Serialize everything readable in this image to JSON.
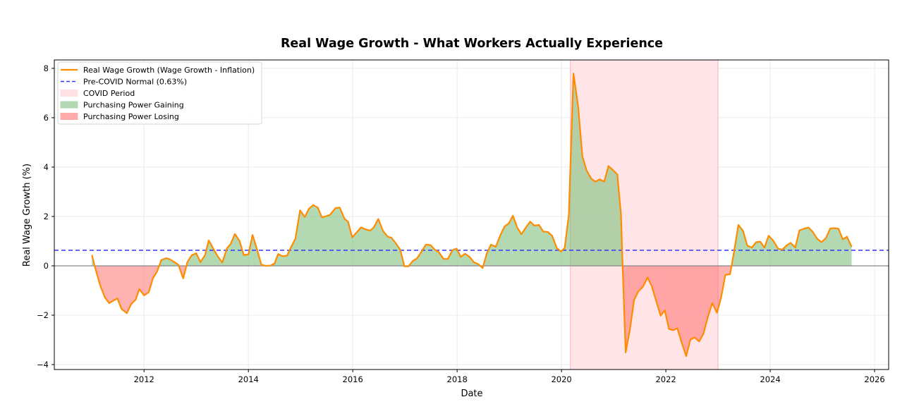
{
  "chart_data": {
    "type": "area",
    "title": "Real Wage Growth - What Workers Actually Experience",
    "xlabel": "Date",
    "ylabel": "Real Wage Growth (%)",
    "xlim": [
      2010.28,
      2026.27
    ],
    "ylim": [
      -4.2,
      8.34
    ],
    "xticks": [
      2012,
      2014,
      2016,
      2018,
      2020,
      2022,
      2024,
      2026
    ],
    "yticks": [
      -4,
      -2,
      0,
      2,
      4,
      6,
      8
    ],
    "ytick_labels": [
      "−4",
      "−2",
      "0",
      "2",
      "4",
      "6",
      "8"
    ],
    "grid": true,
    "legend_position": "top-left",
    "legend": [
      {
        "label": "Real Wage Growth (Wage Growth - Inflation)",
        "kind": "line",
        "color": "#ff8c00"
      },
      {
        "label": "Pre-COVID Normal (0.63%)",
        "kind": "dashed",
        "color": "#3333ff"
      },
      {
        "label": "COVID Period",
        "kind": "patch",
        "color": "#ffe0e3"
      },
      {
        "label": "Purchasing Power Gaining",
        "kind": "patch",
        "color": "#b3d9b3"
      },
      {
        "label": "Purchasing Power Losing",
        "kind": "patch",
        "color": "#ffaaaa"
      }
    ],
    "pre_covid_normal": 0.63,
    "covid_period": [
      2020.17,
      2023.0
    ],
    "colors": {
      "line": "#ff8c00",
      "normal": "#3333ff",
      "covid": "#ffe0e3",
      "gain": "#b3d9b3",
      "loss": "#ffaaaa"
    },
    "series": [
      {
        "name": "Real Wage Growth (Wage Growth - Inflation)",
        "points": [
          [
            2011.0,
            0.44
          ],
          [
            2011.07,
            -0.13
          ],
          [
            2011.16,
            -0.8
          ],
          [
            2011.25,
            -1.28
          ],
          [
            2011.33,
            -1.51
          ],
          [
            2011.49,
            -1.32
          ],
          [
            2011.57,
            -1.75
          ],
          [
            2011.67,
            -1.92
          ],
          [
            2011.75,
            -1.56
          ],
          [
            2011.84,
            -1.37
          ],
          [
            2011.91,
            -0.94
          ],
          [
            2012.0,
            -1.2
          ],
          [
            2012.09,
            -1.07
          ],
          [
            2012.17,
            -0.51
          ],
          [
            2012.25,
            -0.23
          ],
          [
            2012.33,
            0.23
          ],
          [
            2012.42,
            0.31
          ],
          [
            2012.49,
            0.27
          ],
          [
            2012.58,
            0.15
          ],
          [
            2012.66,
            0.04
          ],
          [
            2012.75,
            -0.51
          ],
          [
            2012.83,
            0.15
          ],
          [
            2012.91,
            0.42
          ],
          [
            2013.0,
            0.51
          ],
          [
            2013.08,
            0.15
          ],
          [
            2013.17,
            0.44
          ],
          [
            2013.24,
            1.03
          ],
          [
            2013.33,
            0.68
          ],
          [
            2013.41,
            0.39
          ],
          [
            2013.5,
            0.13
          ],
          [
            2013.59,
            0.72
          ],
          [
            2013.66,
            0.89
          ],
          [
            2013.74,
            1.29
          ],
          [
            2013.83,
            1.01
          ],
          [
            2013.91,
            0.44
          ],
          [
            2014.0,
            0.46
          ],
          [
            2014.08,
            1.25
          ],
          [
            2014.17,
            0.63
          ],
          [
            2014.25,
            0.04
          ],
          [
            2014.34,
            0.0
          ],
          [
            2014.42,
            0.01
          ],
          [
            2014.5,
            0.09
          ],
          [
            2014.57,
            0.48
          ],
          [
            2014.65,
            0.39
          ],
          [
            2014.74,
            0.41
          ],
          [
            2014.82,
            0.77
          ],
          [
            2014.9,
            1.1
          ],
          [
            2014.99,
            2.25
          ],
          [
            2015.08,
            1.98
          ],
          [
            2015.16,
            2.31
          ],
          [
            2015.24,
            2.46
          ],
          [
            2015.33,
            2.36
          ],
          [
            2015.41,
            1.96
          ],
          [
            2015.56,
            2.06
          ],
          [
            2015.67,
            2.34
          ],
          [
            2015.75,
            2.36
          ],
          [
            2015.84,
            1.91
          ],
          [
            2015.91,
            1.79
          ],
          [
            2015.99,
            1.15
          ],
          [
            2016.16,
            1.56
          ],
          [
            2016.25,
            1.47
          ],
          [
            2016.34,
            1.43
          ],
          [
            2016.41,
            1.58
          ],
          [
            2016.49,
            1.9
          ],
          [
            2016.58,
            1.41
          ],
          [
            2016.67,
            1.18
          ],
          [
            2016.74,
            1.14
          ],
          [
            2016.83,
            0.9
          ],
          [
            2016.91,
            0.65
          ],
          [
            2016.99,
            -0.02
          ],
          [
            2017.07,
            -0.02
          ],
          [
            2017.15,
            0.2
          ],
          [
            2017.23,
            0.3
          ],
          [
            2017.31,
            0.55
          ],
          [
            2017.4,
            0.86
          ],
          [
            2017.49,
            0.84
          ],
          [
            2017.57,
            0.66
          ],
          [
            2017.65,
            0.55
          ],
          [
            2017.74,
            0.28
          ],
          [
            2017.82,
            0.28
          ],
          [
            2017.91,
            0.63
          ],
          [
            2017.99,
            0.7
          ],
          [
            2018.07,
            0.36
          ],
          [
            2018.15,
            0.49
          ],
          [
            2018.24,
            0.36
          ],
          [
            2018.32,
            0.15
          ],
          [
            2018.41,
            0.06
          ],
          [
            2018.49,
            -0.09
          ],
          [
            2018.57,
            0.51
          ],
          [
            2018.65,
            0.86
          ],
          [
            2018.74,
            0.77
          ],
          [
            2018.83,
            1.25
          ],
          [
            2018.91,
            1.6
          ],
          [
            2018.99,
            1.72
          ],
          [
            2019.07,
            2.03
          ],
          [
            2019.15,
            1.56
          ],
          [
            2019.23,
            1.28
          ],
          [
            2019.32,
            1.56
          ],
          [
            2019.4,
            1.79
          ],
          [
            2019.48,
            1.63
          ],
          [
            2019.57,
            1.66
          ],
          [
            2019.65,
            1.39
          ],
          [
            2019.74,
            1.37
          ],
          [
            2019.82,
            1.22
          ],
          [
            2019.91,
            0.72
          ],
          [
            2019.99,
            0.58
          ],
          [
            2020.06,
            0.72
          ],
          [
            2020.14,
            2.06
          ],
          [
            2020.23,
            7.79
          ],
          [
            2020.32,
            6.44
          ],
          [
            2020.4,
            4.44
          ],
          [
            2020.48,
            3.87
          ],
          [
            2020.57,
            3.53
          ],
          [
            2020.65,
            3.41
          ],
          [
            2020.73,
            3.5
          ],
          [
            2020.82,
            3.41
          ],
          [
            2020.9,
            4.04
          ],
          [
            2020.99,
            3.87
          ],
          [
            2021.07,
            3.7
          ],
          [
            2021.14,
            2.06
          ],
          [
            2021.17,
            0.06
          ],
          [
            2021.23,
            -3.51
          ],
          [
            2021.31,
            -2.61
          ],
          [
            2021.39,
            -1.39
          ],
          [
            2021.47,
            -1.04
          ],
          [
            2021.56,
            -0.85
          ],
          [
            2021.65,
            -0.47
          ],
          [
            2021.73,
            -0.82
          ],
          [
            2021.81,
            -1.39
          ],
          [
            2021.9,
            -2.02
          ],
          [
            2021.98,
            -1.8
          ],
          [
            2022.06,
            -2.56
          ],
          [
            2022.14,
            -2.61
          ],
          [
            2022.22,
            -2.53
          ],
          [
            2022.3,
            -3.09
          ],
          [
            2022.39,
            -3.66
          ],
          [
            2022.47,
            -2.99
          ],
          [
            2022.55,
            -2.9
          ],
          [
            2022.64,
            -3.06
          ],
          [
            2022.72,
            -2.75
          ],
          [
            2022.81,
            -2.04
          ],
          [
            2022.89,
            -1.51
          ],
          [
            2022.98,
            -1.9
          ],
          [
            2023.06,
            -1.28
          ],
          [
            2023.14,
            -0.37
          ],
          [
            2023.23,
            -0.34
          ],
          [
            2023.3,
            0.49
          ],
          [
            2023.39,
            1.66
          ],
          [
            2023.48,
            1.41
          ],
          [
            2023.56,
            0.82
          ],
          [
            2023.65,
            0.74
          ],
          [
            2023.73,
            0.96
          ],
          [
            2023.81,
            0.98
          ],
          [
            2023.89,
            0.74
          ],
          [
            2023.97,
            1.22
          ],
          [
            2024.06,
            1.01
          ],
          [
            2024.15,
            0.7
          ],
          [
            2024.23,
            0.65
          ],
          [
            2024.31,
            0.82
          ],
          [
            2024.39,
            0.93
          ],
          [
            2024.48,
            0.74
          ],
          [
            2024.56,
            1.44
          ],
          [
            2024.64,
            1.5
          ],
          [
            2024.73,
            1.55
          ],
          [
            2024.81,
            1.39
          ],
          [
            2024.9,
            1.1
          ],
          [
            2024.98,
            0.96
          ],
          [
            2025.07,
            1.13
          ],
          [
            2025.15,
            1.51
          ],
          [
            2025.23,
            1.53
          ],
          [
            2025.31,
            1.5
          ],
          [
            2025.39,
            1.07
          ],
          [
            2025.47,
            1.18
          ],
          [
            2025.56,
            0.77
          ]
        ]
      }
    ]
  }
}
